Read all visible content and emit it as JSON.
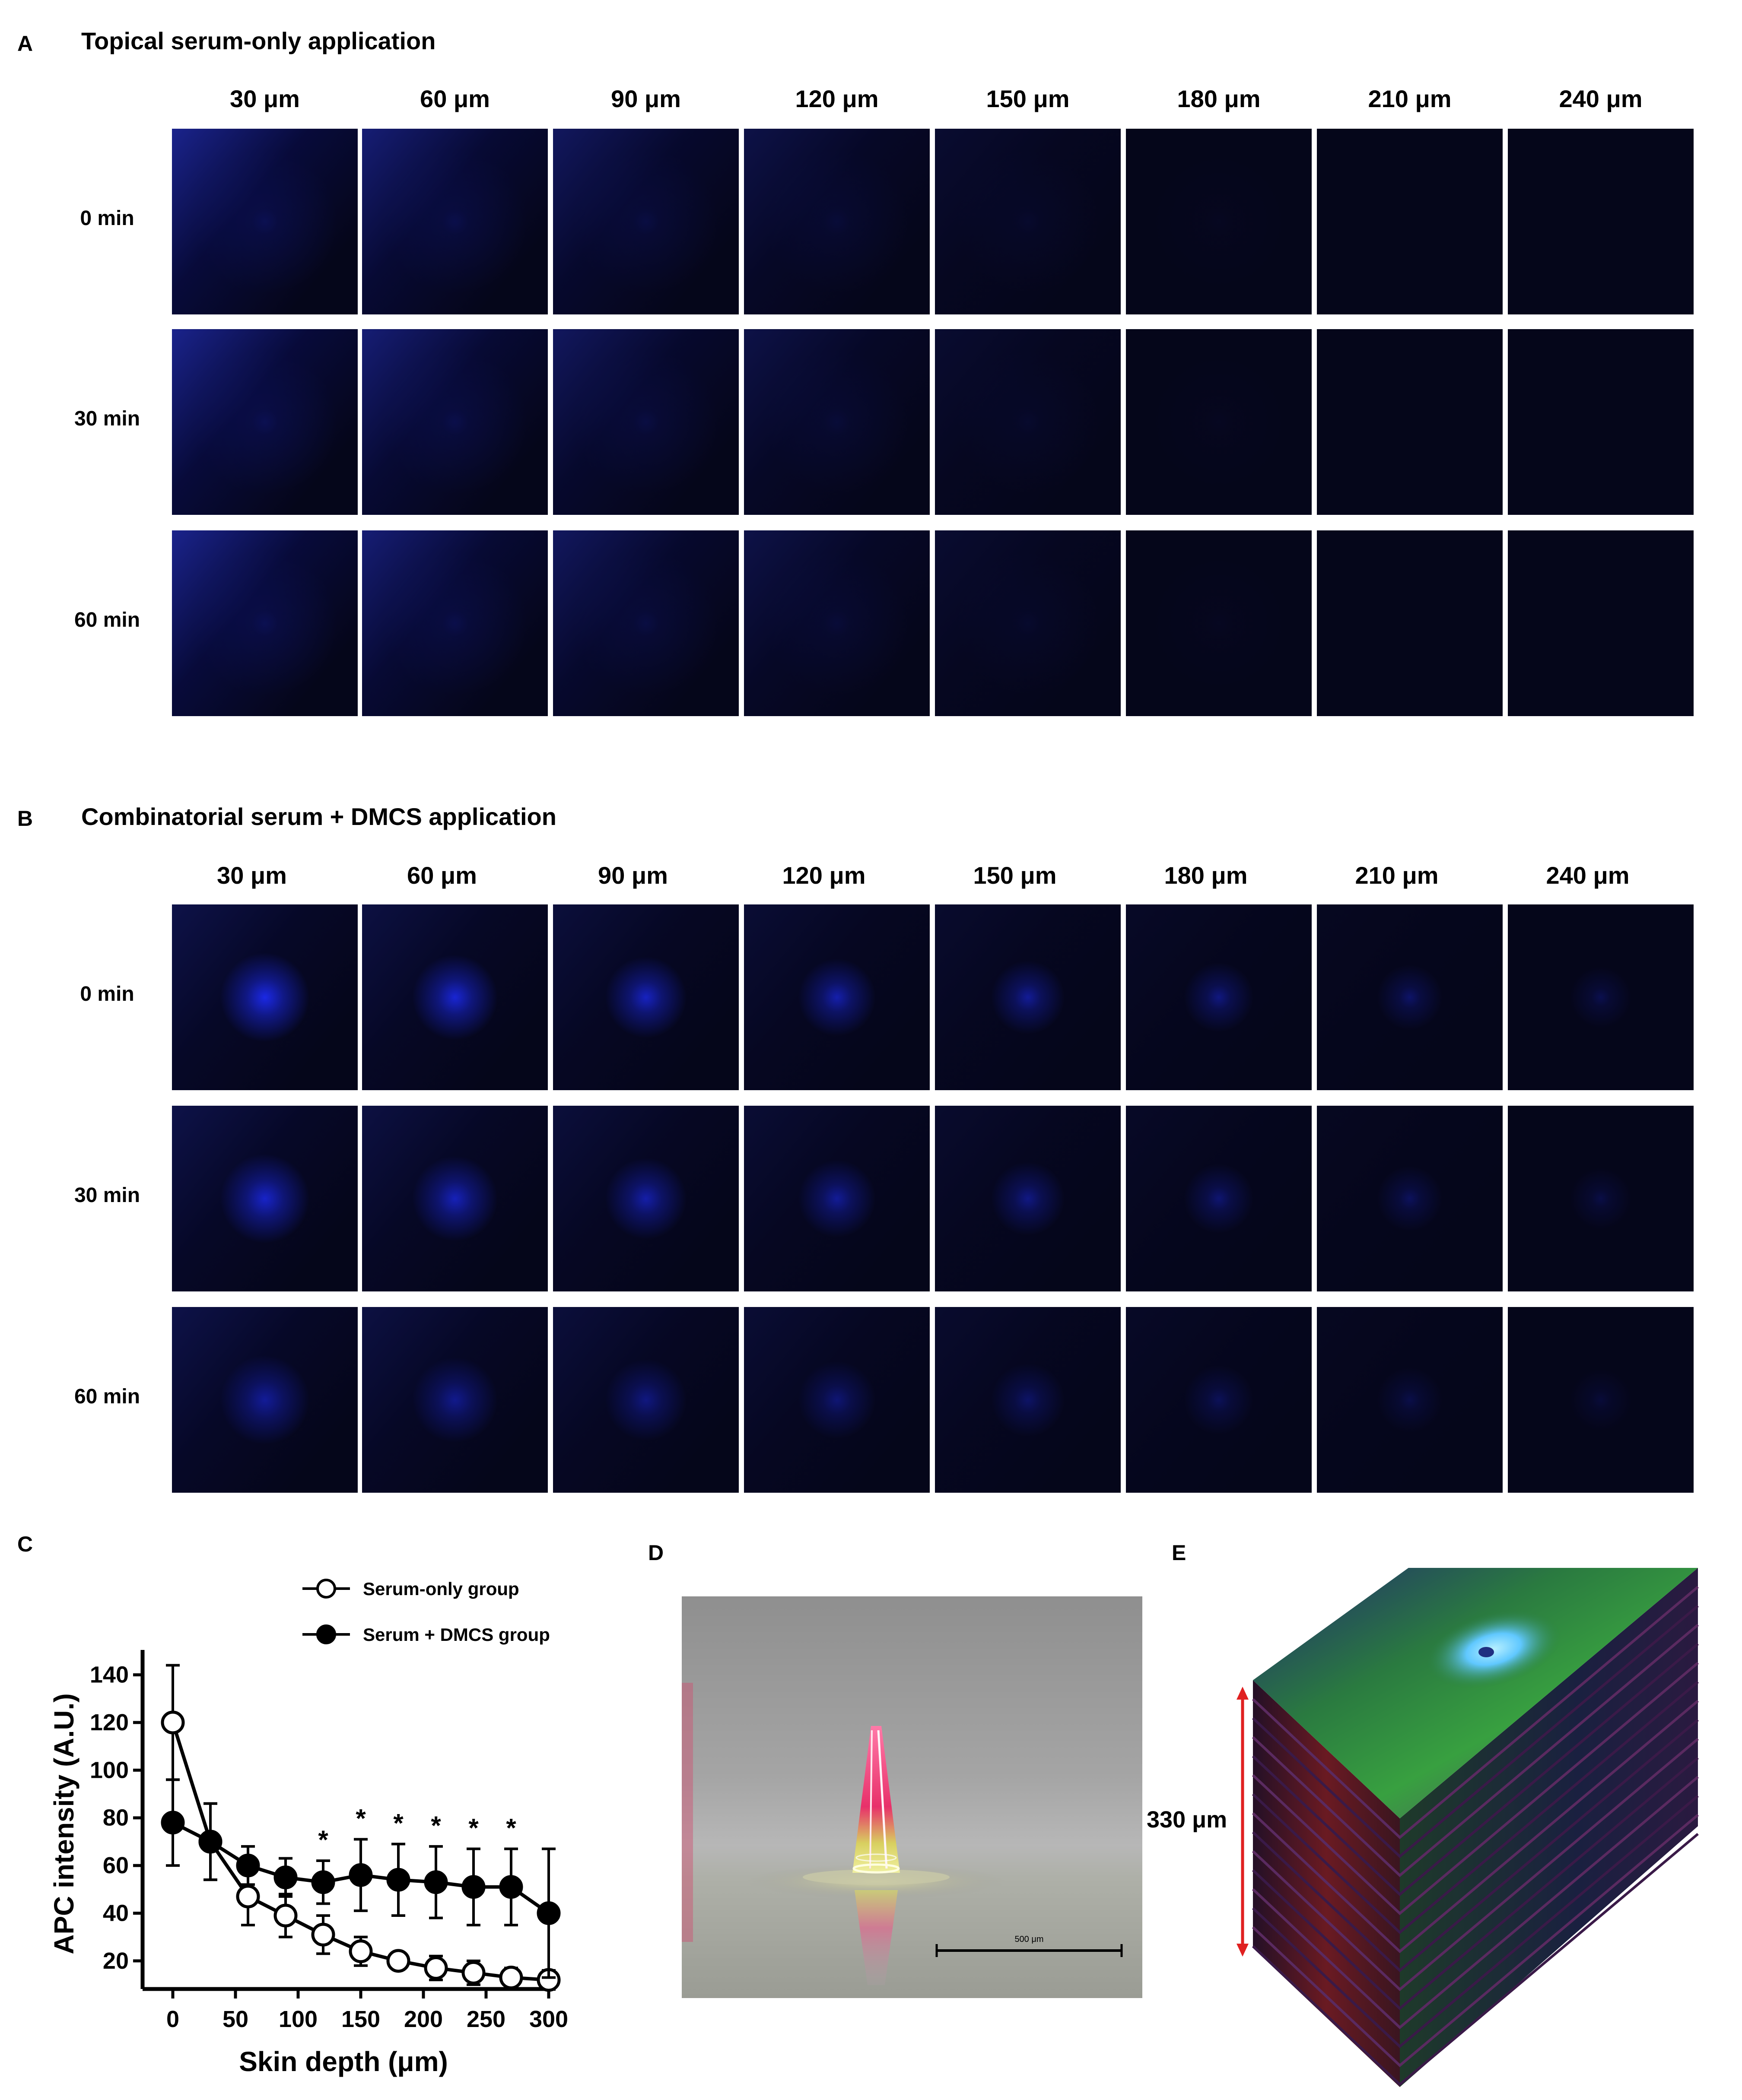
{
  "panels": {
    "a": {
      "letter": "A",
      "title": "Topical serum-only application"
    },
    "b": {
      "letter": "B",
      "title": "Combinatorial serum + DMCS  application"
    },
    "c": {
      "letter": "C"
    },
    "d": {
      "letter": "D",
      "scale_bar_label": "500 μm"
    },
    "e": {
      "letter": "E",
      "height_label": "330 μm"
    }
  },
  "depths": [
    "30 μm",
    "60 μm",
    "90 μm",
    "120 μm",
    "150 μm",
    "180 μm",
    "210 μm",
    "240 μm"
  ],
  "times": [
    "0 min",
    "30 min",
    "60 min"
  ],
  "colors": {
    "fluorescence_blue": "#1a2cff",
    "tile_background": "#05061a",
    "scale_arrow": "#e02020",
    "series_serum_only_fill": "#ffffff",
    "series_dmcs_fill": "#000000"
  },
  "chart_data": {
    "type": "line",
    "title": "",
    "xlabel": "Skin depth (μm)",
    "ylabel": "APC intensity (A.U.)",
    "xlim": [
      0,
      300
    ],
    "ylim": [
      10,
      145
    ],
    "xticks": [
      0,
      50,
      100,
      150,
      200,
      250,
      300
    ],
    "yticks": [
      20,
      40,
      60,
      80,
      100,
      120,
      140
    ],
    "legend_position": "top",
    "series": [
      {
        "name": "Serum-only group",
        "marker": "open-circle",
        "x": [
          0,
          30,
          60,
          90,
          120,
          150,
          180,
          210,
          240,
          270,
          300
        ],
        "y": [
          120,
          70,
          47,
          39,
          31,
          24,
          20,
          17,
          15,
          13,
          12
        ],
        "error": [
          24,
          16,
          12,
          9,
          8,
          6,
          3,
          5,
          5,
          4,
          4
        ]
      },
      {
        "name": "Serum + DMCS group",
        "marker": "filled-circle",
        "x": [
          0,
          30,
          60,
          90,
          120,
          150,
          180,
          210,
          240,
          270,
          300
        ],
        "y": [
          78,
          70,
          60,
          55,
          53,
          56,
          54,
          53,
          51,
          51,
          40
        ],
        "error": [
          18,
          16,
          8,
          8,
          9,
          15,
          15,
          15,
          16,
          16,
          27
        ]
      }
    ],
    "annotations": [
      {
        "x": 120,
        "text": "*"
      },
      {
        "x": 150,
        "text": "*"
      },
      {
        "x": 180,
        "text": "*"
      },
      {
        "x": 210,
        "text": "*"
      },
      {
        "x": 240,
        "text": "*"
      },
      {
        "x": 270,
        "text": "*"
      }
    ]
  }
}
